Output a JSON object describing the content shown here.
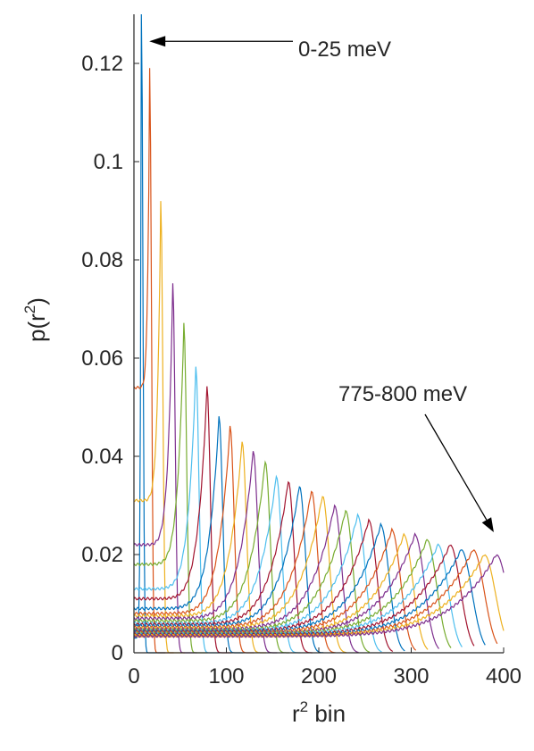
{
  "chart_data": {
    "type": "line",
    "title": "",
    "xlabel": "r",
    "xlabel_sup": "2",
    "xlabel_suffix": " bin",
    "ylabel_pre": "p(r",
    "ylabel_sup": "2",
    "ylabel_post": ")",
    "xlim": [
      0,
      400
    ],
    "ylim": [
      0,
      0.13
    ],
    "xticks": [
      0,
      100,
      200,
      300,
      400
    ],
    "xtick_labels": [
      "0",
      "100",
      "200",
      "300",
      "400"
    ],
    "yticks": [
      0,
      0.02,
      0.04,
      0.06,
      0.08,
      0.1,
      0.12
    ],
    "ytick_labels": [
      "0",
      "0.02",
      "0.04",
      "0.06",
      "0.08",
      "0.1",
      "0.12"
    ],
    "grid": false,
    "legend": "none",
    "series_count": 32,
    "peak_positions": [
      8,
      17,
      29,
      42,
      54,
      67,
      79,
      92,
      104,
      117,
      129,
      142,
      154,
      167,
      179,
      192,
      204,
      217,
      229,
      242,
      254,
      267,
      279,
      292,
      304,
      317,
      329,
      342,
      354,
      367,
      379,
      392
    ],
    "peak_values": [
      0.135,
      0.119,
      0.092,
      0.075,
      0.067,
      0.058,
      0.054,
      0.048,
      0.046,
      0.043,
      0.041,
      0.039,
      0.036,
      0.035,
      0.034,
      0.033,
      0.032,
      0.03,
      0.029,
      0.028,
      0.027,
      0.026,
      0.025,
      0.024,
      0.024,
      0.023,
      0.022,
      0.022,
      0.021,
      0.021,
      0.02,
      0.02
    ],
    "start_values": [
      0.003,
      0.054,
      0.031,
      0.022,
      0.018,
      0.013,
      0.011,
      0.009,
      0.008,
      0.0075,
      0.007,
      0.0065,
      0.006,
      0.0058,
      0.0055,
      0.0052,
      0.005,
      0.0048,
      0.0046,
      0.0045,
      0.0044,
      0.0043,
      0.0042,
      0.004,
      0.004,
      0.0039,
      0.0038,
      0.0037,
      0.0036,
      0.0035,
      0.0035,
      0.0034
    ],
    "colors": [
      "#0072BD",
      "#D95319",
      "#EDB120",
      "#7E2F8E",
      "#77AC30",
      "#4DBEEE",
      "#A2142F"
    ],
    "annotations": [
      {
        "text": "0-25 meV",
        "arrow_to": [
          5,
          0.1245
        ]
      },
      {
        "text": "775-800 meV",
        "arrow_to": [
          370,
          0.022
        ]
      }
    ]
  }
}
